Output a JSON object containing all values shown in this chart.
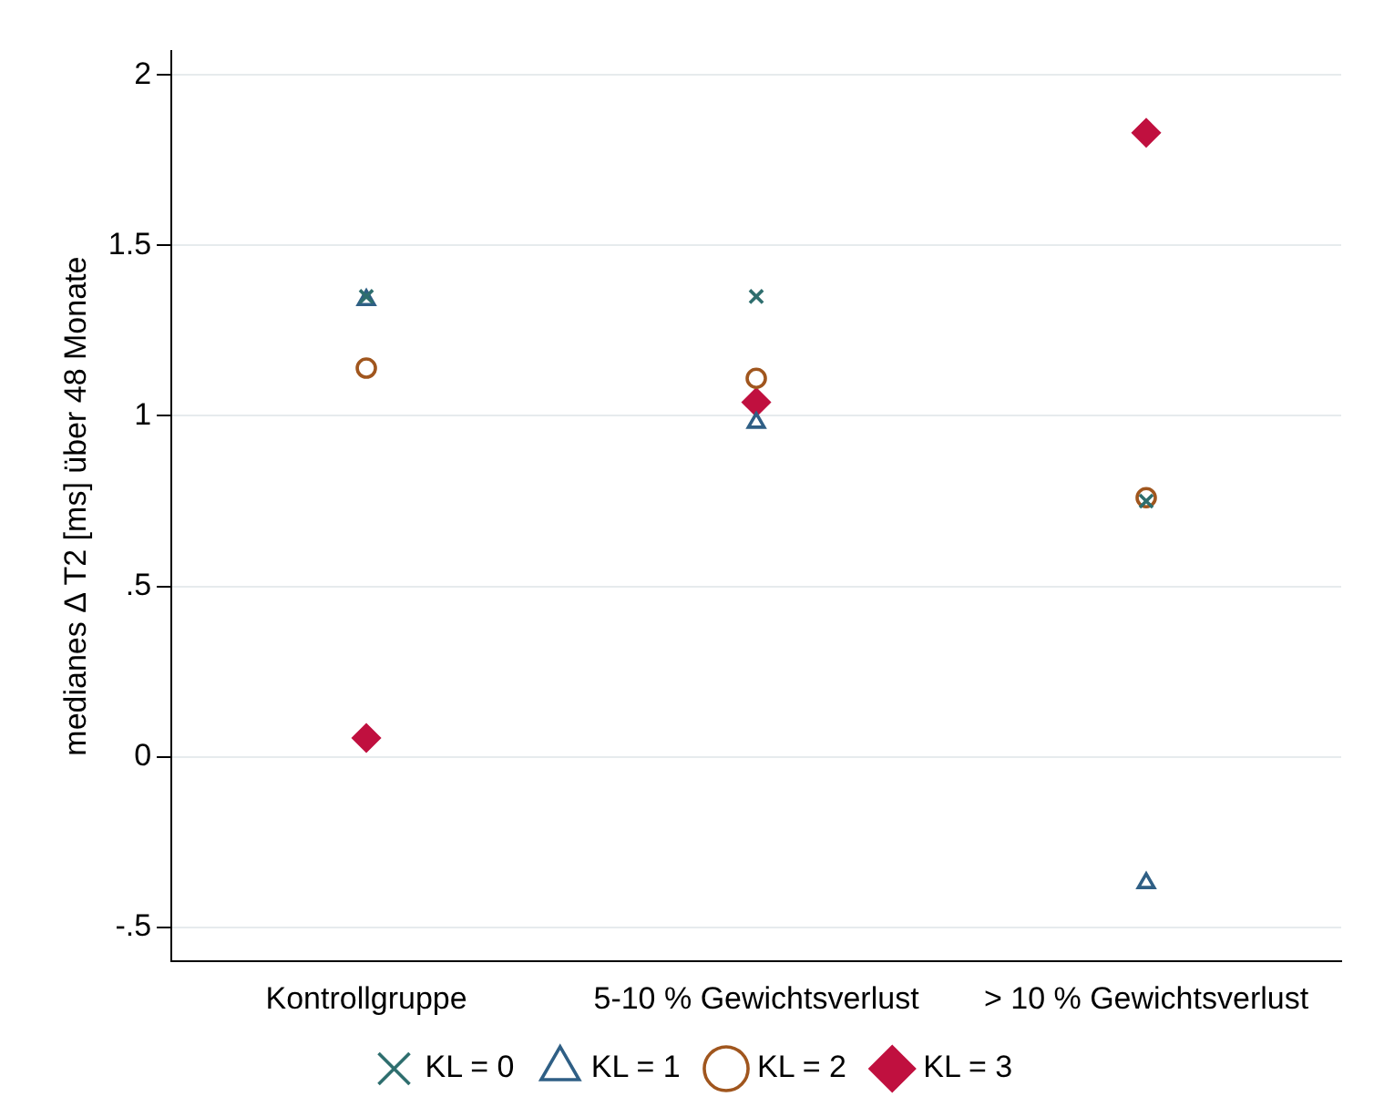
{
  "chart_data": {
    "type": "scatter",
    "ylabel": "medianes Δ T2 [ms] über 48 Monate",
    "categories": [
      "Kontrollgruppe",
      "5-10 % Gewichtsverlust",
      "> 10 % Gewichtsverlust"
    ],
    "series": [
      {
        "name": "KL = 0",
        "color": "#2e6e6e",
        "marker": "cross",
        "values": [
          1.35,
          1.35,
          0.75
        ]
      },
      {
        "name": "KL = 1",
        "color": "#2f5f85",
        "marker": "triangle",
        "values": [
          1.34,
          0.98,
          -0.37
        ]
      },
      {
        "name": "KL = 2",
        "color": "#a0561e",
        "marker": "circle",
        "values": [
          1.14,
          1.11,
          0.76
        ]
      },
      {
        "name": "KL = 3",
        "color": "#c0103f",
        "marker": "diamond",
        "values": [
          0.055,
          1.04,
          1.83
        ]
      }
    ],
    "ylim": [
      -0.6,
      2.07
    ],
    "yticks": [
      {
        "value": -0.5,
        "label": "-.5"
      },
      0,
      {
        "value": 0.5,
        "label": ".5"
      },
      1,
      1.5,
      2
    ],
    "grid": "y",
    "legend": "bottom"
  }
}
